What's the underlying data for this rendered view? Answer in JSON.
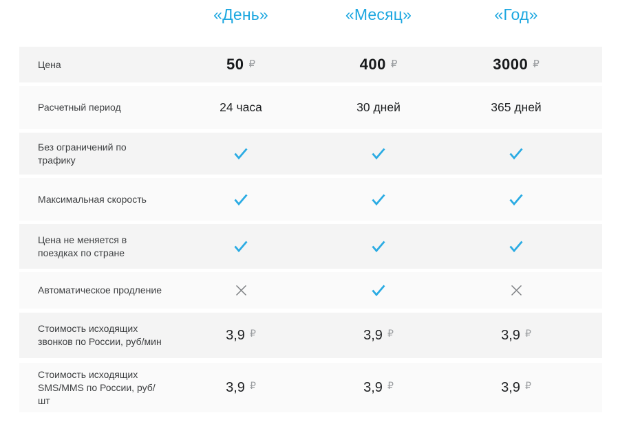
{
  "theme": {
    "accent": "#1ca7e0",
    "check_color": "#2aabe3",
    "cross_color": "#7b7e81",
    "row_dark": "#f4f4f4",
    "row_light": "#fafafa",
    "page_background": "#ffffff"
  },
  "header": {
    "columns": [
      "«День»",
      "«Месяц»",
      "«Год»"
    ]
  },
  "table": {
    "rows": [
      {
        "label": "Цена",
        "type": "price",
        "shade": "dark",
        "values": [
          "50",
          "400",
          "3000"
        ],
        "currency": "₽"
      },
      {
        "label": "Расчетный период",
        "type": "text",
        "shade": "light",
        "values": [
          "24 часа",
          "30 дней",
          "365 дней"
        ]
      },
      {
        "label": "Без ограничений по трафику",
        "type": "mark",
        "shade": "dark",
        "values": [
          "check",
          "check",
          "check"
        ]
      },
      {
        "label": "Максимальная скорость",
        "type": "mark",
        "shade": "light",
        "values": [
          "check",
          "check",
          "check"
        ]
      },
      {
        "label": "Цена не меняется в поездках по стране",
        "type": "mark",
        "shade": "dark",
        "values": [
          "check",
          "check",
          "check"
        ]
      },
      {
        "label": "Автоматическое продление",
        "type": "mark",
        "shade": "light",
        "values": [
          "cross",
          "check",
          "cross"
        ]
      },
      {
        "label": "Стоимость исходящих звонков по России, руб/мин",
        "type": "price_small",
        "shade": "dark",
        "values": [
          "3,9",
          "3,9",
          "3,9"
        ],
        "currency": "₽"
      },
      {
        "label": "Стоимость исходящих SMS/MMS по России, руб/шт",
        "type": "price_small",
        "shade": "light",
        "values": [
          "3,9",
          "3,9",
          "3,9"
        ],
        "currency": "₽"
      }
    ]
  }
}
